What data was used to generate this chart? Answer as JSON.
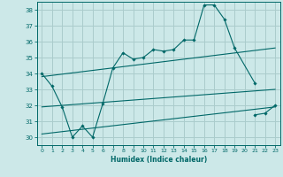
{
  "xlabel": "Humidex (Indice chaleur)",
  "background_color": "#cce8e8",
  "grid_color": "#aacccc",
  "line_color": "#006868",
  "xlim": [
    -0.5,
    23.5
  ],
  "ylim": [
    29.5,
    38.5
  ],
  "yticks": [
    30,
    31,
    32,
    33,
    34,
    35,
    36,
    37,
    38
  ],
  "xticks": [
    0,
    1,
    2,
    3,
    4,
    5,
    6,
    7,
    8,
    9,
    10,
    11,
    12,
    13,
    14,
    15,
    16,
    17,
    18,
    19,
    20,
    21,
    22,
    23
  ],
  "main_series": {
    "x": [
      0,
      1,
      2,
      3,
      4,
      5,
      6,
      7,
      8,
      9,
      10,
      11,
      12,
      13,
      14,
      15,
      16,
      17,
      18,
      19,
      21
    ],
    "y": [
      34.0,
      33.2,
      31.9,
      30.0,
      30.7,
      30.0,
      32.1,
      34.35,
      35.3,
      34.9,
      35.0,
      35.5,
      35.4,
      35.5,
      36.1,
      36.1,
      38.3,
      38.3,
      37.4,
      35.6,
      33.4
    ]
  },
  "trend_lines": [
    {
      "x": [
        0,
        23
      ],
      "y": [
        33.8,
        35.6
      ]
    },
    {
      "x": [
        0,
        23
      ],
      "y": [
        31.9,
        33.0
      ]
    },
    {
      "x": [
        0,
        23
      ],
      "y": [
        30.2,
        31.9
      ]
    }
  ],
  "extra_segments": [
    {
      "x": [
        21,
        22,
        23
      ],
      "y": [
        31.4,
        31.5,
        32.0
      ]
    }
  ]
}
